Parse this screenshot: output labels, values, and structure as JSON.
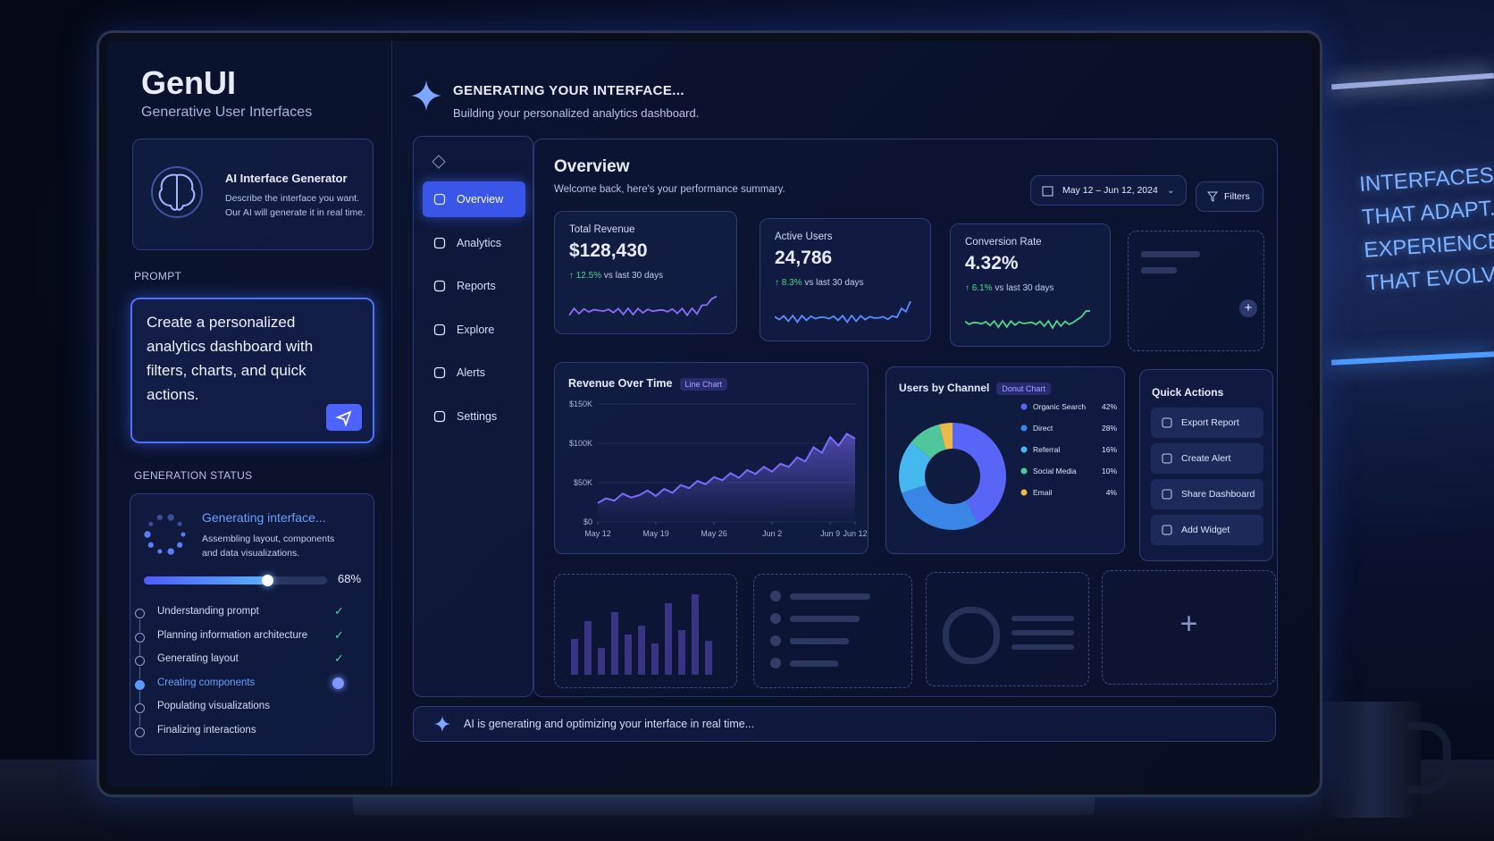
{
  "brand": {
    "title": "GenUI",
    "subtitle": "Generative User Interfaces"
  },
  "generator": {
    "title": "AI Interface Generator",
    "description": "Describe the interface you want. Our AI will generate it in real time."
  },
  "prompt": {
    "label": "PROMPT",
    "text": "Create a personalized analytics dashboard with filters, charts, and quick actions."
  },
  "status": {
    "label": "GENERATION STATUS",
    "title": "Generating interface...",
    "description": "Assembling layout, components and data visualizations.",
    "progress": 68,
    "progress_label": "68%",
    "steps": [
      "Understanding prompt",
      "Planning information architecture",
      "Generating layout",
      "Creating components",
      "Populating visualizations",
      "Finalizing interactions"
    ]
  },
  "header": {
    "title": "GENERATING YOUR INTERFACE...",
    "subtitle": "Building your personalized analytics dashboard."
  },
  "nav": [
    "Overview",
    "Analytics",
    "Reports",
    "Explore",
    "Alerts",
    "Settings"
  ],
  "overview": {
    "title": "Overview",
    "subtitle": "Welcome back, here's your performance summary.",
    "date_range": "May 12 – Jun 12, 2024",
    "filters": "Filters"
  },
  "kpis": [
    {
      "label": "Total Revenue",
      "value": "$128,430",
      "change": "12.5%",
      "period": "vs last 30 days"
    },
    {
      "label": "Active Users",
      "value": "24,786",
      "change": "8.3%",
      "period": "vs last 30 days"
    },
    {
      "label": "Conversion Rate",
      "value": "4.32%",
      "change": "6.1%",
      "period": "vs last 30 days"
    }
  ],
  "revenue_chart": {
    "type": "line",
    "title": "Revenue Over Time",
    "badge": "Line Chart",
    "color": "#7b6cff",
    "x": [
      0,
      1,
      2,
      3,
      4,
      5,
      6,
      7,
      8,
      9,
      10,
      11,
      12,
      13,
      14,
      15,
      16,
      17,
      18,
      19,
      20,
      21,
      22,
      23,
      24,
      25,
      26,
      27,
      28,
      29,
      30,
      31
    ],
    "values": [
      24000,
      30000,
      27000,
      36000,
      31000,
      34000,
      40000,
      33000,
      42000,
      37000,
      47000,
      43000,
      52000,
      48000,
      57000,
      53000,
      62000,
      56000,
      66000,
      61000,
      70000,
      64000,
      74000,
      70000,
      82000,
      77000,
      95000,
      88000,
      108000,
      97000,
      112000,
      106000
    ],
    "xlim": [
      0,
      31
    ],
    "xticks": [
      {
        "value": 0,
        "label": "May 12"
      },
      {
        "value": 7,
        "label": "May 19"
      },
      {
        "value": 14,
        "label": "May 26"
      },
      {
        "value": 21,
        "label": "Jun 2"
      },
      {
        "value": 28,
        "label": "Jun 9"
      },
      {
        "value": 31,
        "label": "Jun 12"
      }
    ],
    "ylim": [
      0,
      150000
    ],
    "yticks": [
      {
        "value": 0,
        "label": "$0"
      },
      {
        "value": 50000,
        "label": "$50K"
      },
      {
        "value": 100000,
        "label": "$100K"
      },
      {
        "value": 150000,
        "label": "$150K"
      }
    ],
    "grid": true
  },
  "users_by_channel": {
    "type": "donut",
    "title": "Users by Channel",
    "badge": "Donut Chart",
    "channels": [
      {
        "name": "Organic Search",
        "value": 42,
        "label": "42%",
        "color": "#5865f6"
      },
      {
        "name": "Direct",
        "value": 28,
        "label": "28%",
        "color": "#3a86e6"
      },
      {
        "name": "Referral",
        "value": 16,
        "label": "16%",
        "color": "#45b8f0"
      },
      {
        "name": "Social Media",
        "value": 10,
        "label": "10%",
        "color": "#4fc79a"
      },
      {
        "name": "Email",
        "value": 4,
        "label": "4%",
        "color": "#e9b949"
      }
    ]
  },
  "quick_actions": {
    "title": "Quick Actions",
    "items": [
      "Export Report",
      "Create Alert",
      "Share Dashboard",
      "Add Widget"
    ]
  },
  "footer": "AI is generating and optimizing your interface in real time...",
  "wall_text": [
    "INTERFACES",
    "THAT ADAPT.",
    "EXPERIENCES",
    "THAT EVOLVE."
  ]
}
